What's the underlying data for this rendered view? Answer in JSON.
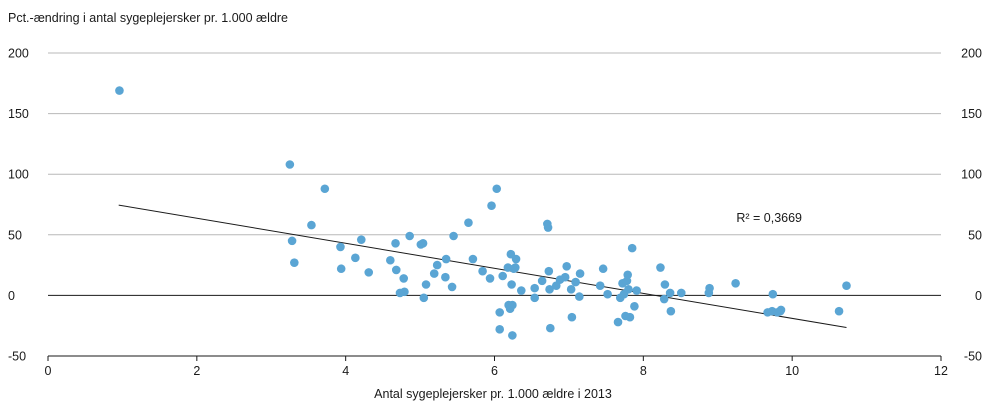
{
  "chart_data": {
    "type": "scatter",
    "title": "",
    "ylabel": "Pct.-ændring i antal sygeplejersker pr. 1.000 ældre",
    "xlabel": "Antal sygeplejersker pr. 1.000 ældre i 2013",
    "xlim": [
      0,
      12
    ],
    "ylim": [
      -50,
      200
    ],
    "x_ticks": [
      "0",
      "2",
      "4",
      "6",
      "8",
      "10",
      "12"
    ],
    "y_ticks": [
      "-50",
      "0",
      "50",
      "100",
      "150",
      "200"
    ],
    "grid": "horizontal",
    "annotation": "R² = 0,3669",
    "marker_color": "#5aa5d4",
    "trendline": {
      "x": [
        0.95,
        10.73
      ],
      "y": [
        74.5,
        -26.5
      ],
      "color": "#1a1a1a"
    },
    "points": [
      [
        0.96,
        169
      ],
      [
        3.25,
        108
      ],
      [
        3.28,
        45
      ],
      [
        3.31,
        27
      ],
      [
        3.54,
        58
      ],
      [
        3.72,
        88
      ],
      [
        3.93,
        40
      ],
      [
        3.94,
        22
      ],
      [
        4.13,
        31
      ],
      [
        4.21,
        46
      ],
      [
        4.31,
        19
      ],
      [
        4.6,
        29
      ],
      [
        4.67,
        43
      ],
      [
        4.68,
        21
      ],
      [
        4.73,
        2
      ],
      [
        4.78,
        14
      ],
      [
        4.79,
        3
      ],
      [
        4.86,
        49
      ],
      [
        5.01,
        42
      ],
      [
        5.04,
        43
      ],
      [
        5.05,
        -2
      ],
      [
        5.08,
        9
      ],
      [
        5.19,
        18
      ],
      [
        5.23,
        25
      ],
      [
        5.34,
        15
      ],
      [
        5.35,
        30
      ],
      [
        5.43,
        7
      ],
      [
        5.45,
        49
      ],
      [
        5.65,
        60
      ],
      [
        5.71,
        30
      ],
      [
        5.84,
        20
      ],
      [
        5.94,
        14
      ],
      [
        5.96,
        74
      ],
      [
        6.03,
        88
      ],
      [
        6.07,
        -28
      ],
      [
        6.07,
        -14
      ],
      [
        6.11,
        16
      ],
      [
        6.18,
        23
      ],
      [
        6.19,
        -8
      ],
      [
        6.21,
        -11
      ],
      [
        6.22,
        34
      ],
      [
        6.23,
        9
      ],
      [
        6.24,
        -8
      ],
      [
        6.24,
        -33
      ],
      [
        6.26,
        22
      ],
      [
        6.28,
        23
      ],
      [
        6.29,
        30
      ],
      [
        6.36,
        4
      ],
      [
        6.54,
        -2
      ],
      [
        6.54,
        6
      ],
      [
        6.64,
        12
      ],
      [
        6.71,
        59
      ],
      [
        6.72,
        56
      ],
      [
        6.73,
        20
      ],
      [
        6.74,
        5
      ],
      [
        6.75,
        -27
      ],
      [
        6.83,
        8
      ],
      [
        6.88,
        13
      ],
      [
        6.95,
        15
      ],
      [
        6.97,
        24
      ],
      [
        7.03,
        5
      ],
      [
        7.04,
        -18
      ],
      [
        7.09,
        11
      ],
      [
        7.14,
        -1
      ],
      [
        7.15,
        18
      ],
      [
        7.42,
        8
      ],
      [
        7.46,
        22
      ],
      [
        7.52,
        1
      ],
      [
        7.66,
        -22
      ],
      [
        7.69,
        -2
      ],
      [
        7.72,
        10
      ],
      [
        7.74,
        1
      ],
      [
        7.76,
        -17
      ],
      [
        7.78,
        12
      ],
      [
        7.79,
        17
      ],
      [
        7.8,
        5
      ],
      [
        7.82,
        -18
      ],
      [
        7.85,
        39
      ],
      [
        7.88,
        -9
      ],
      [
        7.91,
        4
      ],
      [
        8.23,
        23
      ],
      [
        8.28,
        -3
      ],
      [
        8.29,
        9
      ],
      [
        8.36,
        2
      ],
      [
        8.37,
        -13
      ],
      [
        8.51,
        2
      ],
      [
        8.88,
        2
      ],
      [
        8.89,
        6
      ],
      [
        9.24,
        10
      ],
      [
        9.67,
        -14
      ],
      [
        9.73,
        -13
      ],
      [
        9.74,
        1
      ],
      [
        9.8,
        -14
      ],
      [
        9.84,
        -13
      ],
      [
        9.85,
        -12
      ],
      [
        10.63,
        -13
      ],
      [
        10.73,
        8
      ]
    ]
  }
}
